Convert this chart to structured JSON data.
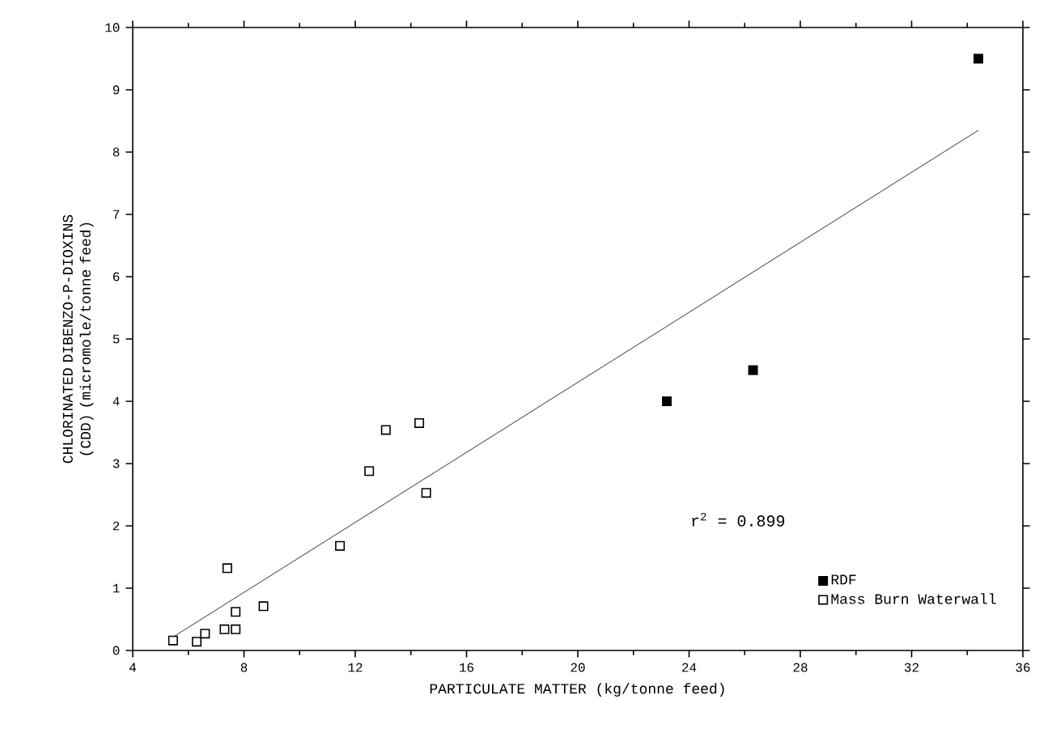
{
  "chart_data": {
    "type": "scatter",
    "xlabel": "PARTICULATE MATTER (kg/tonne feed)",
    "ylabel": "CHLORINATED DIBENZO-P-DIOXINS (CDD) (micromole/tonne feed)",
    "xlim": [
      4,
      36
    ],
    "xticks": [
      4,
      8,
      12,
      16,
      20,
      24,
      28,
      32,
      36
    ],
    "ylim": [
      0,
      10
    ],
    "yticks": [
      0,
      1,
      2,
      3,
      4,
      5,
      6,
      7,
      8,
      9,
      10
    ],
    "marker": "square",
    "legend": "bottom right",
    "grid": false,
    "annotations": [
      "r$^{2}$ = 0.899"
    ],
    "series": [
      {
        "name": "RDF",
        "color": "#000000",
        "x": [
          23.2,
          26.3,
          34.4
        ],
        "values": [
          4.0,
          4.5,
          9.5
        ]
      },
      {
        "name": "Mass Burn Waterwall",
        "color": "#ffffff",
        "x": [
          5.45,
          6.3,
          6.6,
          7.3,
          7.7,
          7.7,
          7.4,
          8.7,
          11.45,
          12.5,
          13.1,
          14.3,
          14.55
        ],
        "values": [
          0.16,
          0.14,
          0.27,
          0.34,
          0.34,
          0.62,
          1.32,
          0.71,
          1.68,
          2.88,
          3.54,
          3.65,
          2.53
        ]
      },
      {
        "type": "line",
        "color": "#000000",
        "marker": "none",
        "x": [
          5.5,
          34.4
        ],
        "values": [
          0.23,
          8.35
        ]
      }
    ]
  }
}
